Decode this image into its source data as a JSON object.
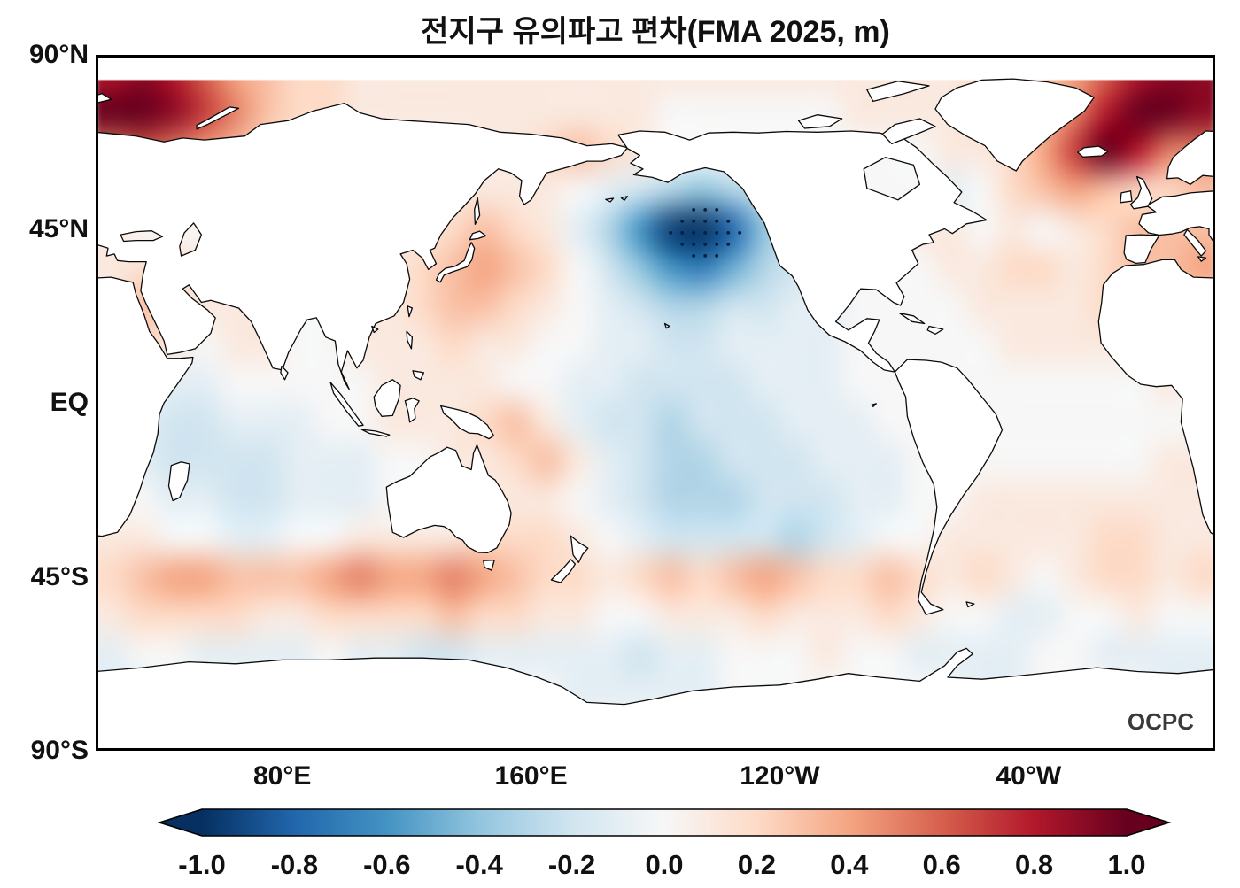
{
  "title": "전지구 유의파고 편차(FMA 2025, m)",
  "watermark": "OCPC",
  "axes": {
    "y_labels": [
      {
        "label": "90°N",
        "lat": 90
      },
      {
        "label": "45°N",
        "lat": 45
      },
      {
        "label": "EQ",
        "lat": 0
      },
      {
        "label": "45°S",
        "lat": -45
      },
      {
        "label": "90°S",
        "lat": -90
      }
    ],
    "x_labels": [
      {
        "label": "80°E",
        "lon_e": 80
      },
      {
        "label": "160°E",
        "lon_e": 160
      },
      {
        "label": "120°W",
        "lon_e": 240
      },
      {
        "label": "40°W",
        "lon_e": 320
      }
    ]
  },
  "colorbar": {
    "ticks": [
      "-1.0",
      "-0.8",
      "-0.6",
      "-0.4",
      "-0.2",
      "0.0",
      "0.2",
      "0.4",
      "0.6",
      "0.8",
      "1.0"
    ],
    "stops": [
      {
        "v": -1.0,
        "c": "#053061"
      },
      {
        "v": -0.8,
        "c": "#2166ac"
      },
      {
        "v": -0.6,
        "c": "#4393c3"
      },
      {
        "v": -0.4,
        "c": "#92c5de"
      },
      {
        "v": -0.2,
        "c": "#d1e5f0"
      },
      {
        "v": 0.0,
        "c": "#f7f7f7"
      },
      {
        "v": 0.2,
        "c": "#fddbc7"
      },
      {
        "v": 0.4,
        "c": "#f4a582"
      },
      {
        "v": 0.6,
        "c": "#d6604d"
      },
      {
        "v": 0.8,
        "c": "#b2182b"
      },
      {
        "v": 1.0,
        "c": "#67001f"
      }
    ]
  },
  "chart_data": {
    "type": "heatmap",
    "title": "전지구 유의파고 편차(FMA 2025, m)",
    "variable": "significant wave height anomaly",
    "units": "m",
    "period": "FMA 2025",
    "projection": "equirectangular, Pacific-centered",
    "lon_range_e": [
      20,
      380
    ],
    "lat_range": [
      -90,
      90
    ],
    "vmin": -1.0,
    "vmax": 1.0,
    "colormap": "RdBu_r",
    "colorbar_ticks": [
      -1.0,
      -0.8,
      -0.6,
      -0.4,
      -0.2,
      0.0,
      0.2,
      0.4,
      0.6,
      0.8,
      1.0
    ],
    "stippling_note": "significance stipple dots over the strong negative North Pacific anomaly near 215E, 45N",
    "data_cap_lat_north": 83.5,
    "notable_features": [
      {
        "region": "Northeast Pacific (145W, 45N)",
        "anomaly": -1.0
      },
      {
        "region": "Barents/Kara Seas (20-60E, 70-85N)",
        "anomaly": 1.0
      },
      {
        "region": "Norwegian/Greenland Seas (20W-20E, 60-80N)",
        "anomaly": 1.0
      },
      {
        "region": "Kuroshio extension (140-170E, 30-40N)",
        "anomaly": 0.4
      },
      {
        "region": "Southern Ocean band (40-55S)",
        "anomaly": 0.35
      },
      {
        "region": "Tropical Pacific / Indian Ocean",
        "anomaly": -0.2
      }
    ],
    "grid": {
      "lon_start_e": 25,
      "lon_step": 10,
      "lat_start": 85,
      "lat_step": -10,
      "n_lon": 36,
      "n_lat": 18,
      "values": [
        [
          0.8,
          0.9,
          0.8,
          0.6,
          0.4,
          0.3,
          0.2,
          0.2,
          0.1,
          0.1,
          0.1,
          0.1,
          0.1,
          0.1,
          0.1,
          0.1,
          0.1,
          0.1,
          0.1,
          0.1,
          0.1,
          0.1,
          0.1,
          0.1,
          0.1,
          0.1,
          0.1,
          0.1,
          0.2,
          0.2,
          0.3,
          0.4,
          0.6,
          0.8,
          0.9,
          0.9
        ],
        [
          1.0,
          1.0,
          0.9,
          0.7,
          0.5,
          0.3,
          0.2,
          0.2,
          0.1,
          0.1,
          0.1,
          0.1,
          0.1,
          0.1,
          0.1,
          0.1,
          0.1,
          0.1,
          0.0,
          0.0,
          0.0,
          0.0,
          0.0,
          0.0,
          0.1,
          0.1,
          0.1,
          0.1,
          0.2,
          0.2,
          0.3,
          0.5,
          0.8,
          1.0,
          1.0,
          0.9
        ],
        [
          0.5,
          0.6,
          0.5,
          0.4,
          0.3,
          0.2,
          0.1,
          0.1,
          0.1,
          0.0,
          0.0,
          0.0,
          0.1,
          0.1,
          0.2,
          0.3,
          0.2,
          0.1,
          0.0,
          0.0,
          0.0,
          0.0,
          0.0,
          0.0,
          0.0,
          0.0,
          0.0,
          0.1,
          0.1,
          0.2,
          0.4,
          0.7,
          1.0,
          0.8,
          0.5,
          0.5
        ],
        [
          0.2,
          0.2,
          0.2,
          0.1,
          0.1,
          0.1,
          0.0,
          0.0,
          0.0,
          0.0,
          0.0,
          0.1,
          0.1,
          0.1,
          0.1,
          0.0,
          -0.1,
          -0.2,
          -0.3,
          -0.4,
          -0.3,
          -0.2,
          -0.1,
          0.0,
          0.0,
          0.0,
          0.0,
          -0.1,
          0.0,
          0.2,
          0.3,
          0.4,
          0.3,
          0.2,
          0.2,
          0.3
        ],
        [
          0.1,
          0.0,
          0.0,
          0.0,
          0.0,
          0.0,
          0.0,
          0.0,
          0.0,
          0.1,
          0.1,
          0.2,
          0.3,
          0.2,
          0.1,
          -0.1,
          -0.3,
          -0.6,
          -0.95,
          -1.0,
          -0.8,
          -0.4,
          -0.2,
          -0.1,
          0.0,
          0.0,
          0.1,
          0.1,
          0.0,
          0.1,
          0.0,
          0.1,
          0.2,
          0.3,
          0.3,
          0.3
        ],
        [
          0.1,
          0.15,
          0.2,
          0.1,
          0.1,
          0.0,
          0.0,
          0.0,
          0.0,
          0.1,
          0.2,
          0.3,
          0.4,
          0.3,
          0.2,
          0.0,
          -0.2,
          -0.4,
          -0.6,
          -0.7,
          -0.5,
          -0.3,
          -0.2,
          -0.1,
          0.0,
          0.0,
          0.0,
          0.1,
          0.1,
          0.2,
          0.2,
          0.1,
          0.2,
          0.3,
          0.3,
          0.4
        ],
        [
          0.1,
          0.3,
          0.2,
          0.1,
          0.1,
          0.1,
          0.0,
          0.0,
          0.1,
          0.1,
          0.2,
          0.3,
          0.3,
          0.2,
          0.1,
          0.0,
          -0.1,
          -0.2,
          -0.3,
          -0.3,
          -0.2,
          -0.2,
          -0.1,
          -0.1,
          0.0,
          0.0,
          0.0,
          0.0,
          0.1,
          0.1,
          0.1,
          0.1,
          0.2,
          0.2,
          0.2,
          0.2
        ],
        [
          0.1,
          0.2,
          0.1,
          0.0,
          0.1,
          0.1,
          0.0,
          0.0,
          0.1,
          0.1,
          0.1,
          0.2,
          0.1,
          0.1,
          0.0,
          0.0,
          -0.1,
          -0.1,
          -0.2,
          -0.2,
          -0.1,
          -0.1,
          -0.1,
          -0.1,
          0.0,
          0.0,
          0.0,
          0.0,
          0.0,
          0.1,
          0.1,
          0.1,
          0.1,
          0.1,
          0.1,
          0.1
        ],
        [
          0.0,
          0.0,
          -0.1,
          -0.1,
          0.0,
          0.0,
          0.0,
          0.0,
          0.0,
          0.1,
          0.1,
          0.1,
          0.1,
          0.0,
          0.0,
          -0.1,
          -0.1,
          -0.2,
          -0.2,
          -0.2,
          -0.2,
          -0.1,
          -0.1,
          -0.1,
          0.0,
          0.0,
          0.0,
          0.0,
          0.0,
          0.0,
          0.0,
          0.0,
          0.0,
          0.0,
          0.1,
          0.0
        ],
        [
          0.0,
          -0.1,
          -0.2,
          -0.2,
          -0.1,
          -0.1,
          -0.1,
          0.0,
          0.0,
          0.1,
          0.1,
          0.1,
          0.2,
          0.3,
          0.1,
          -0.1,
          -0.2,
          -0.2,
          -0.3,
          -0.2,
          -0.2,
          -0.2,
          -0.1,
          -0.1,
          -0.1,
          0.0,
          0.0,
          0.0,
          0.0,
          0.0,
          0.0,
          0.0,
          0.0,
          0.0,
          0.0,
          0.0
        ],
        [
          0.0,
          -0.1,
          -0.2,
          -0.2,
          -0.2,
          -0.2,
          -0.1,
          -0.1,
          -0.1,
          0.0,
          0.0,
          0.1,
          0.1,
          0.2,
          0.3,
          0.1,
          -0.1,
          -0.2,
          -0.3,
          -0.3,
          -0.2,
          -0.2,
          -0.2,
          -0.1,
          -0.1,
          -0.1,
          0.0,
          0.0,
          0.0,
          0.0,
          0.0,
          0.0,
          0.0,
          0.0,
          0.1,
          0.1
        ],
        [
          0.0,
          0.0,
          -0.1,
          -0.1,
          -0.2,
          -0.2,
          -0.1,
          -0.1,
          -0.1,
          0.0,
          0.0,
          0.0,
          0.1,
          0.1,
          0.1,
          0.0,
          -0.1,
          -0.2,
          -0.3,
          -0.3,
          -0.3,
          -0.2,
          -0.2,
          -0.2,
          -0.1,
          -0.1,
          0.0,
          0.0,
          0.1,
          0.1,
          0.1,
          0.1,
          0.1,
          0.1,
          0.1,
          0.1
        ],
        [
          0.1,
          0.1,
          0.0,
          0.0,
          -0.1,
          -0.1,
          0.0,
          0.0,
          0.1,
          0.1,
          0.1,
          0.1,
          0.2,
          0.2,
          0.2,
          0.1,
          0.0,
          -0.1,
          -0.2,
          -0.2,
          -0.2,
          -0.2,
          -0.3,
          -0.2,
          -0.1,
          0.0,
          0.0,
          0.1,
          0.1,
          0.1,
          0.1,
          0.1,
          0.2,
          0.2,
          0.1,
          0.1
        ],
        [
          0.2,
          0.3,
          0.4,
          0.4,
          0.3,
          0.3,
          0.3,
          0.4,
          0.5,
          0.4,
          0.4,
          0.5,
          0.4,
          0.3,
          0.2,
          0.2,
          0.1,
          0.2,
          0.3,
          0.2,
          0.3,
          0.4,
          0.3,
          0.2,
          0.2,
          0.3,
          0.2,
          0.1,
          0.2,
          0.1,
          0.0,
          0.1,
          0.2,
          0.2,
          0.1,
          0.2
        ],
        [
          0.1,
          0.2,
          0.2,
          0.2,
          0.2,
          0.1,
          0.1,
          0.2,
          0.2,
          0.2,
          0.2,
          0.3,
          0.2,
          0.2,
          0.1,
          0.1,
          0.0,
          0.0,
          0.1,
          0.1,
          0.1,
          0.2,
          0.1,
          0.1,
          0.1,
          0.2,
          0.1,
          0.0,
          0.0,
          -0.1,
          -0.1,
          0.0,
          0.0,
          0.1,
          0.0,
          0.0
        ],
        [
          -0.1,
          0.0,
          0.0,
          -0.1,
          -0.1,
          -0.1,
          -0.1,
          0.0,
          -0.1,
          -0.1,
          -0.2,
          -0.2,
          -0.1,
          -0.1,
          -0.1,
          -0.1,
          -0.1,
          -0.2,
          -0.1,
          -0.1,
          0.0,
          0.0,
          0.0,
          0.1,
          0.0,
          0.0,
          -0.1,
          -0.1,
          -0.1,
          -0.1,
          0.0,
          0.0,
          -0.1,
          -0.1,
          -0.1,
          -0.1
        ],
        [
          -0.1,
          -0.1,
          0.0,
          0.0,
          0.0,
          0.0,
          0.0,
          0.0,
          0.0,
          0.0,
          -0.1,
          -0.1,
          0.0,
          0.0,
          0.0,
          -0.1,
          -0.1,
          -0.1,
          -0.1,
          -0.1,
          0.0,
          0.0,
          0.0,
          0.0,
          0.0,
          0.0,
          0.0,
          0.0,
          -0.1,
          -0.1,
          0.0,
          0.0,
          0.0,
          0.0,
          -0.1,
          -0.1
        ],
        [
          0,
          0,
          0,
          0,
          0,
          0,
          0,
          0,
          0,
          0,
          0,
          0,
          0,
          0,
          0,
          0,
          0,
          0,
          0,
          0,
          0,
          0,
          0,
          0,
          0,
          0,
          0,
          0,
          0,
          0,
          0,
          0,
          0,
          0,
          0,
          0
        ]
      ]
    }
  }
}
